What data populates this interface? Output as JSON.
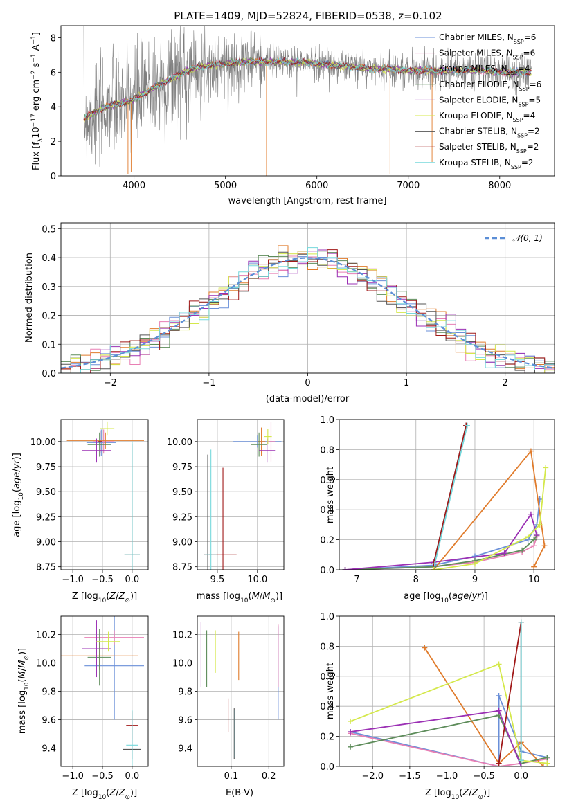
{
  "figure": {
    "title": "PLATE=1409, MJD=52824, FIBERID=0538, z=0.102",
    "colors": {
      "Chabrier MILES": "#6a8fd8",
      "Salpeter MILES": "#e87fb4",
      "Kroupa MILES": "#e07b2b",
      "Chabrier ELODIE": "#5d8c5a",
      "Salpeter ELODIE": "#9b30b4",
      "Kroupa ELODIE": "#d4e84a",
      "Chabrier STELIB": "#555555",
      "Salpeter STELIB": "#a01818",
      "Kroupa STELIB": "#76d8dc"
    }
  },
  "chart_data": [
    {
      "id": "spectrum",
      "type": "line",
      "xlabel": "wavelength [Angstrom, rest frame]",
      "ylabel": "Flux [f_λ 10^-17 erg cm^-2 s^-1 A^-1]",
      "xlim": [
        3200,
        8600
      ],
      "ylim": [
        0,
        8.7
      ],
      "xticks": [
        4000,
        5000,
        6000,
        7000,
        8000
      ],
      "yticks": [
        0,
        2,
        4,
        6,
        8
      ],
      "legend_position": "right",
      "legend": [
        {
          "name": "Chabrier MILES, N_SSP=6",
          "base": "Chabrier MILES, N",
          "sub": "SSP",
          "tail": "=6",
          "color": "#6a8fd8"
        },
        {
          "name": "Salpeter MILES, N_SSP=6",
          "base": "Salpeter MILES, N",
          "sub": "SSP",
          "tail": "=6",
          "color": "#e87fb4"
        },
        {
          "name": "Kroupa MILES, N_SSP=4",
          "base": "Kroupa MILES, N",
          "sub": "SSP",
          "tail": "=4",
          "color": "#e07b2b"
        },
        {
          "name": "Chabrier ELODIE, N_SSP=6",
          "base": "Chabrier ELODIE, N",
          "sub": "SSP",
          "tail": "=6",
          "color": "#5d8c5a"
        },
        {
          "name": "Salpeter ELODIE, N_SSP=5",
          "base": "Salpeter ELODIE, N",
          "sub": "SSP",
          "tail": "=5",
          "color": "#9b30b4"
        },
        {
          "name": "Kroupa ELODIE, N_SSP=4",
          "base": "Kroupa ELODIE, N",
          "sub": "SSP",
          "tail": "=4",
          "color": "#d4e84a"
        },
        {
          "name": "Chabrier STELIB, N_SSP=2",
          "base": "Chabrier STELIB, N",
          "sub": "SSP",
          "tail": "=2",
          "color": "#555555"
        },
        {
          "name": "Salpeter STELIB, N_SSP=2",
          "base": "Salpeter STELIB, N",
          "sub": "SSP",
          "tail": "=2",
          "color": "#a01818"
        },
        {
          "name": "Kroupa STELIB, N_SSP=2",
          "base": "Kroupa STELIB, N",
          "sub": "SSP",
          "tail": "=2",
          "color": "#76d8dc"
        }
      ],
      "continuum": [
        [
          3450,
          3.3
        ],
        [
          3550,
          3.6
        ],
        [
          3650,
          3.9
        ],
        [
          3750,
          4.1
        ],
        [
          3850,
          4.2
        ],
        [
          3950,
          4.3
        ],
        [
          4050,
          4.6
        ],
        [
          4150,
          4.9
        ],
        [
          4250,
          5.2
        ],
        [
          4400,
          5.6
        ],
        [
          4550,
          6.0
        ],
        [
          4700,
          6.3
        ],
        [
          4850,
          6.4
        ],
        [
          5000,
          6.5
        ],
        [
          5200,
          6.6
        ],
        [
          5400,
          6.6
        ],
        [
          5600,
          6.6
        ],
        [
          5800,
          6.6
        ],
        [
          6000,
          6.5
        ],
        [
          6200,
          6.4
        ],
        [
          6400,
          6.3
        ],
        [
          6600,
          6.2
        ],
        [
          6800,
          6.2
        ],
        [
          7000,
          6.1
        ],
        [
          7200,
          6.1
        ],
        [
          7400,
          6.1
        ],
        [
          7600,
          6.1
        ],
        [
          7800,
          6.1
        ],
        [
          8000,
          6.0
        ],
        [
          8200,
          6.0
        ],
        [
          8350,
          6.0
        ]
      ],
      "deep_lines": [
        [
          3934,
          0.1
        ],
        [
          3968,
          0.2
        ],
        [
          5449,
          0.0
        ],
        [
          6800,
          0.1
        ],
        [
          7260,
          0.8
        ]
      ]
    },
    {
      "id": "residuals",
      "type": "histogram",
      "xlabel": "(data-model)/error",
      "ylabel": "Normed distribution",
      "xlim": [
        -2.5,
        2.5
      ],
      "ylim": [
        0,
        0.52
      ],
      "xticks": [
        -2,
        -1,
        0,
        1,
        2
      ],
      "yticks": [
        0.0,
        0.1,
        0.2,
        0.3,
        0.4,
        0.5
      ],
      "grid": true,
      "legend_position": "top-right",
      "reference_curve": {
        "name": "N(0,1)",
        "color": "#5b8ed6",
        "style": "dashed"
      },
      "bin_width": 0.1
    },
    {
      "id": "age_vs_Z",
      "type": "errorbar",
      "xlabel": "Z [log10(Z/Z_sun)]",
      "ylabel": "age [log10(age/yr)]",
      "xlim": [
        -1.2,
        0.27
      ],
      "ylim": [
        8.72,
        10.22
      ],
      "xticks": [
        -1.0,
        -0.5,
        0.0
      ],
      "yticks": [
        8.75,
        9.0,
        9.25,
        9.5,
        9.75,
        10.0
      ],
      "grid": true,
      "points": [
        {
          "label": "Chabrier MILES",
          "x": -0.52,
          "xerr": 0.25,
          "y": 9.99,
          "yerr": 0.13
        },
        {
          "label": "Salpeter MILES",
          "x": -0.48,
          "xerr": 0.18,
          "y": 10.0,
          "yerr": 0.12
        },
        {
          "label": "Kroupa MILES",
          "x": -0.45,
          "xerr": 0.65,
          "y": 10.01,
          "yerr": 0.08
        },
        {
          "label": "Chabrier ELODIE",
          "x": -0.55,
          "xerr": 0.2,
          "y": 9.97,
          "yerr": 0.12
        },
        {
          "label": "Salpeter ELODIE",
          "x": -0.6,
          "xerr": 0.25,
          "y": 9.91,
          "yerr": 0.12
        },
        {
          "label": "Kroupa ELODIE",
          "x": -0.42,
          "xerr": 0.12,
          "y": 10.13,
          "yerr": 0.07
        },
        {
          "label": "Chabrier STELIB",
          "x": 0.0,
          "xerr": 0.13,
          "y": 8.87,
          "yerr": 1.1
        },
        {
          "label": "Salpeter STELIB",
          "x": -0.54,
          "xerr": 0.03,
          "y": 10.0,
          "yerr": 0.11
        },
        {
          "label": "Kroupa STELIB",
          "x": 0.0,
          "xerr": 0.13,
          "y": 8.87,
          "yerr": 1.13
        }
      ]
    },
    {
      "id": "age_vs_mass",
      "type": "errorbar",
      "xlabel": "mass [log10(M/M_sun)]",
      "ylabel": "",
      "xlim": [
        9.25,
        10.33
      ],
      "ylim": [
        8.72,
        10.22
      ],
      "xticks": [
        9.5,
        10.0
      ],
      "yticks": [
        8.75,
        9.0,
        9.25,
        9.5,
        9.75,
        10.0
      ],
      "grid": true,
      "points": [
        {
          "label": "Chabrier MILES",
          "x": 10.0,
          "xerr": 0.3,
          "y": 10.0,
          "yerr": 0.06
        },
        {
          "label": "Salpeter MILES",
          "x": 10.17,
          "xerr": 0.05,
          "y": 10.0,
          "yerr": 0.2
        },
        {
          "label": "Kroupa MILES",
          "x": 10.05,
          "xerr": 0.05,
          "y": 10.0,
          "yerr": 0.14
        },
        {
          "label": "Chabrier ELODIE",
          "x": 10.02,
          "xerr": 0.1,
          "y": 9.97,
          "yerr": 0.12
        },
        {
          "label": "Salpeter ELODIE",
          "x": 10.12,
          "xerr": 0.1,
          "y": 9.91,
          "yerr": 0.12
        },
        {
          "label": "Kroupa ELODIE",
          "x": 10.13,
          "xerr": 0.05,
          "y": 10.05,
          "yerr": 0.08
        },
        {
          "label": "Chabrier STELIB",
          "x": 9.38,
          "xerr": 0.05,
          "y": 8.87,
          "yerr": 1.0
        },
        {
          "label": "Salpeter STELIB",
          "x": 9.57,
          "xerr": 0.17,
          "y": 8.87,
          "yerr": 0.87
        },
        {
          "label": "Kroupa STELIB",
          "x": 9.42,
          "xerr": 0.07,
          "y": 8.87,
          "yerr": 1.05
        }
      ]
    },
    {
      "id": "weight_vs_age",
      "type": "line",
      "xlabel": "age [log10(age/yr)]",
      "ylabel": "mass weight",
      "xlim": [
        6.7,
        10.35
      ],
      "ylim": [
        0,
        1.0
      ],
      "xticks": [
        7,
        8,
        9,
        10
      ],
      "yticks": [
        0.0,
        0.2,
        0.4,
        0.6,
        0.8,
        1.0
      ],
      "grid": true,
      "series": [
        {
          "label": "Chabrier MILES",
          "x": [
            6.8,
            8.3,
            9.0,
            9.9,
            10.05,
            10.1
          ],
          "y": [
            0.0,
            0.03,
            0.09,
            0.2,
            0.3,
            0.47
          ]
        },
        {
          "label": "Salpeter MILES",
          "x": [
            6.8,
            8.3,
            9.0,
            9.8,
            10.0,
            10.05
          ],
          "y": [
            0.0,
            0.02,
            0.05,
            0.12,
            0.16,
            0.22
          ]
        },
        {
          "label": "Kroupa MILES",
          "x": [
            8.3,
            9.95,
            10.18,
            10.0
          ],
          "y": [
            0.0,
            0.79,
            0.16,
            0.02
          ]
        },
        {
          "label": "Chabrier ELODIE",
          "x": [
            6.8,
            8.3,
            9.0,
            9.8,
            10.0,
            10.05
          ],
          "y": [
            0.0,
            0.02,
            0.06,
            0.13,
            0.2,
            0.23
          ]
        },
        {
          "label": "Salpeter ELODIE",
          "x": [
            6.8,
            8.3,
            9.5,
            9.95,
            10.05
          ],
          "y": [
            0.0,
            0.05,
            0.11,
            0.37,
            0.23
          ]
        },
        {
          "label": "Kroupa ELODIE",
          "x": [
            8.3,
            9.0,
            9.9,
            10.1,
            10.2
          ],
          "y": [
            0.0,
            0.04,
            0.22,
            0.3,
            0.68
          ]
        },
        {
          "label": "Chabrier STELIB",
          "x": [
            8.3,
            8.85
          ],
          "y": [
            0.04,
            0.96
          ]
        },
        {
          "label": "Salpeter STELIB",
          "x": [
            8.3,
            8.85
          ],
          "y": [
            0.04,
            0.96
          ]
        },
        {
          "label": "Kroupa STELIB",
          "x": [
            8.32,
            8.87
          ],
          "y": [
            0.04,
            0.96
          ]
        }
      ]
    },
    {
      "id": "mass_vs_Z",
      "type": "errorbar",
      "xlabel": "Z [log10(Z/Z_sun)]",
      "ylabel": "mass [log10(M/M_sun)]",
      "xlim": [
        -1.2,
        0.27
      ],
      "ylim": [
        9.27,
        10.33
      ],
      "xticks": [
        -1.0,
        -0.5,
        0.0
      ],
      "yticks": [
        9.4,
        9.6,
        9.8,
        10.0,
        10.2
      ],
      "grid": true,
      "points": [
        {
          "label": "Chabrier MILES",
          "x": -0.3,
          "xerr": 0.5,
          "y": 9.98,
          "yerr": 0.38
        },
        {
          "label": "Salpeter MILES",
          "x": -0.3,
          "xerr": 0.5,
          "y": 10.18,
          "yerr": 0.05
        },
        {
          "label": "Kroupa MILES",
          "x": -0.55,
          "xerr": 0.65,
          "y": 10.05,
          "yerr": 0.1
        },
        {
          "label": "Chabrier ELODIE",
          "x": -0.55,
          "xerr": 0.2,
          "y": 10.04,
          "yerr": 0.2
        },
        {
          "label": "Salpeter ELODIE",
          "x": -0.6,
          "xerr": 0.25,
          "y": 10.1,
          "yerr": 0.2
        },
        {
          "label": "Kroupa ELODIE",
          "x": -0.4,
          "xerr": 0.2,
          "y": 10.15,
          "yerr": 0.07
        },
        {
          "label": "Chabrier STELIB",
          "x": 0.0,
          "xerr": 0.15,
          "y": 9.39,
          "yerr": 0.07
        },
        {
          "label": "Salpeter STELIB",
          "x": 0.0,
          "xerr": 0.1,
          "y": 9.56,
          "yerr": 0.1
        },
        {
          "label": "Kroupa STELIB",
          "x": 0.0,
          "xerr": 0.1,
          "y": 9.42,
          "yerr": 0.25
        }
      ]
    },
    {
      "id": "mass_vs_EBV",
      "type": "errorbar",
      "xlabel": "E(B-V)",
      "ylabel": "",
      "xlim": [
        0.01,
        0.24
      ],
      "ylim": [
        9.27,
        10.33
      ],
      "xticks": [
        0.1,
        0.2
      ],
      "yticks": [
        9.4,
        9.6,
        9.8,
        10.0,
        10.2
      ],
      "grid": true,
      "points": [
        {
          "label": "Chabrier MILES",
          "x": 0.225,
          "y": 9.93,
          "yerr": 0.33
        },
        {
          "label": "Salpeter MILES",
          "x": 0.225,
          "y": 10.05,
          "yerr": 0.22
        },
        {
          "label": "Kroupa MILES",
          "x": 0.12,
          "y": 10.05,
          "yerr": 0.17
        },
        {
          "label": "Chabrier ELODIE",
          "x": 0.035,
          "y": 10.03,
          "yerr": 0.2
        },
        {
          "label": "Salpeter ELODIE",
          "x": 0.02,
          "y": 10.06,
          "yerr": 0.23
        },
        {
          "label": "Kroupa ELODIE",
          "x": 0.058,
          "y": 10.08,
          "yerr": 0.15
        },
        {
          "label": "Chabrier STELIB",
          "x": 0.108,
          "y": 9.5,
          "yerr": 0.18
        },
        {
          "label": "Salpeter STELIB",
          "x": 0.092,
          "y": 9.63,
          "yerr": 0.12
        },
        {
          "label": "Kroupa STELIB",
          "x": 0.11,
          "y": 9.5,
          "yerr": 0.17
        }
      ]
    },
    {
      "id": "weight_vs_Z",
      "type": "line",
      "xlabel": "Z [log10(Z/Z_sun)]",
      "ylabel": "mass weight",
      "xlim": [
        -2.45,
        0.45
      ],
      "ylim": [
        0,
        1.0
      ],
      "xticks": [
        -2.0,
        -1.5,
        -1.0,
        -0.5,
        0.0
      ],
      "yticks": [
        0.0,
        0.2,
        0.4,
        0.6,
        0.8,
        1.0
      ],
      "grid": true,
      "series": [
        {
          "label": "Chabrier MILES",
          "x": [
            -2.3,
            -0.3,
            -0.3,
            0.0,
            0.35
          ],
          "y": [
            0.23,
            0.0,
            0.47,
            0.1,
            0.06
          ]
        },
        {
          "label": "Salpeter MILES",
          "x": [
            -2.3,
            -0.3,
            0.0,
            0.35
          ],
          "y": [
            0.22,
            0.0,
            0.02,
            0.05
          ]
        },
        {
          "label": "Kroupa MILES",
          "x": [
            -1.3,
            -0.3,
            0.0,
            0.3
          ],
          "y": [
            0.79,
            0.02,
            0.16,
            0.0
          ]
        },
        {
          "label": "Chabrier ELODIE",
          "x": [
            -2.3,
            -0.3,
            0.0,
            0.35
          ],
          "y": [
            0.13,
            0.34,
            0.02,
            0.06
          ]
        },
        {
          "label": "Salpeter ELODIE",
          "x": [
            -2.3,
            -0.3,
            0.0
          ],
          "y": [
            0.23,
            0.37,
            0.0
          ]
        },
        {
          "label": "Kroupa ELODIE",
          "x": [
            -2.3,
            -0.3,
            0.0,
            0.35
          ],
          "y": [
            0.3,
            0.68,
            0.04,
            0.02
          ]
        },
        {
          "label": "Chabrier STELIB",
          "x": [
            0.0,
            0.0
          ],
          "y": [
            0.04,
            0.96
          ]
        },
        {
          "label": "Salpeter STELIB",
          "x": [
            -0.3,
            0.0
          ],
          "y": [
            0.02,
            0.96
          ]
        },
        {
          "label": "Kroupa STELIB",
          "x": [
            0.0,
            0.0
          ],
          "y": [
            0.04,
            0.96
          ]
        }
      ]
    }
  ]
}
